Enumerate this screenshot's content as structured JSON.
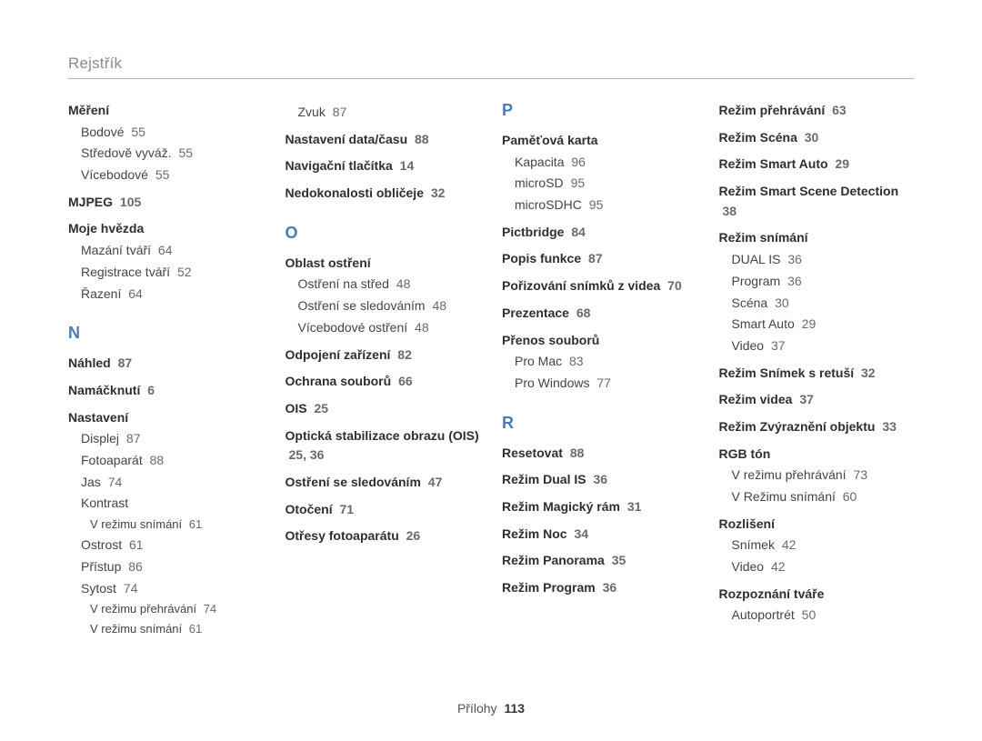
{
  "page": {
    "breadcrumb": "Rejstřík",
    "footer_label": "Přílohy",
    "footer_page": "113",
    "colors": {
      "letter": "#4a7bb5",
      "breadcrumb": "#8a8a8a",
      "text": "#3a3a3a",
      "rule": "#b8b8b8",
      "bg": "#ffffff"
    }
  },
  "columns": [
    [
      {
        "type": "bold",
        "text": "Měření",
        "first": true
      },
      {
        "type": "sub",
        "text": "Bodové",
        "page": "55"
      },
      {
        "type": "sub",
        "text": "Středově vyváž.",
        "page": "55"
      },
      {
        "type": "sub",
        "text": "Vícebodové",
        "page": "55"
      },
      {
        "type": "bold",
        "text": "MJPEG",
        "page": "105"
      },
      {
        "type": "bold",
        "text": "Moje hvězda"
      },
      {
        "type": "sub",
        "text": "Mazání tváří",
        "page": "64"
      },
      {
        "type": "sub",
        "text": "Registrace tváří",
        "page": "52"
      },
      {
        "type": "sub",
        "text": "Řazení",
        "page": "64"
      },
      {
        "type": "letter",
        "text": "N"
      },
      {
        "type": "bold",
        "text": "Náhled",
        "page": "87"
      },
      {
        "type": "bold",
        "text": "Namáčknutí",
        "page": "6"
      },
      {
        "type": "bold",
        "text": "Nastavení"
      },
      {
        "type": "sub",
        "text": "Displej",
        "page": "87"
      },
      {
        "type": "sub",
        "text": "Fotoaparát",
        "page": "88"
      },
      {
        "type": "sub",
        "text": "Jas",
        "page": "74"
      },
      {
        "type": "sub",
        "text": "Kontrast"
      },
      {
        "type": "sub2",
        "text": "V režimu snímání",
        "page": "61"
      },
      {
        "type": "sub",
        "text": "Ostrost",
        "page": "61"
      },
      {
        "type": "sub",
        "text": "Přístup",
        "page": "86"
      },
      {
        "type": "sub",
        "text": "Sytost",
        "page": "74"
      },
      {
        "type": "sub2",
        "text": "V režimu přehrávání",
        "page": "74"
      },
      {
        "type": "sub2",
        "text": "V režimu snímání",
        "page": "61"
      }
    ],
    [
      {
        "type": "sub",
        "text": "Zvuk",
        "page": "87"
      },
      {
        "type": "bold",
        "text": "Nastavení data/času",
        "page": "88"
      },
      {
        "type": "bold",
        "text": "Navigační tlačítka",
        "page": "14"
      },
      {
        "type": "bold",
        "text": "Nedokonalosti obličeje",
        "page": "32"
      },
      {
        "type": "letter",
        "text": "O"
      },
      {
        "type": "bold",
        "text": "Oblast ostření"
      },
      {
        "type": "sub",
        "text": "Ostření na střed",
        "page": "48"
      },
      {
        "type": "sub",
        "text": "Ostření se sledováním",
        "page": "48"
      },
      {
        "type": "sub",
        "text": "Vícebodové ostření",
        "page": "48"
      },
      {
        "type": "bold",
        "text": "Odpojení zařízení",
        "page": "82"
      },
      {
        "type": "bold",
        "text": "Ochrana souborů",
        "page": "66"
      },
      {
        "type": "bold",
        "text": "OIS",
        "page": "25"
      },
      {
        "type": "bold",
        "text": "Optická stabilizace obrazu (OIS)",
        "page": "25, 36"
      },
      {
        "type": "bold",
        "text": "Ostření se sledováním",
        "page": "47"
      },
      {
        "type": "bold",
        "text": "Otočení",
        "page": "71"
      },
      {
        "type": "bold",
        "text": "Otřesy fotoaparátu",
        "page": "26"
      }
    ],
    [
      {
        "type": "letter",
        "text": "P",
        "top": true
      },
      {
        "type": "bold",
        "text": "Paměťová karta"
      },
      {
        "type": "sub",
        "text": "Kapacita",
        "page": "96"
      },
      {
        "type": "sub",
        "text": "microSD",
        "page": "95"
      },
      {
        "type": "sub",
        "text": "microSDHC",
        "page": "95"
      },
      {
        "type": "bold",
        "text": "Pictbridge",
        "page": "84"
      },
      {
        "type": "bold",
        "text": "Popis funkce",
        "page": "87"
      },
      {
        "type": "bold",
        "text": "Pořizování snímků z videa",
        "page": "70"
      },
      {
        "type": "bold",
        "text": "Prezentace",
        "page": "68"
      },
      {
        "type": "bold",
        "text": "Přenos souborů"
      },
      {
        "type": "sub",
        "text": "Pro Mac",
        "page": "83"
      },
      {
        "type": "sub",
        "text": "Pro Windows",
        "page": "77"
      },
      {
        "type": "letter",
        "text": "R"
      },
      {
        "type": "bold",
        "text": "Resetovat",
        "page": "88"
      },
      {
        "type": "bold",
        "text": "Režim Dual IS",
        "page": "36"
      },
      {
        "type": "bold",
        "text": "Režim Magický rám",
        "page": "31"
      },
      {
        "type": "bold",
        "text": "Režim Noc",
        "page": "34"
      },
      {
        "type": "bold",
        "text": "Režim Panorama",
        "page": "35"
      },
      {
        "type": "bold",
        "text": "Režim Program",
        "page": "36"
      }
    ],
    [
      {
        "type": "bold",
        "text": "Režim přehrávání",
        "page": "63",
        "first": true
      },
      {
        "type": "bold",
        "text": "Režim Scéna",
        "page": "30"
      },
      {
        "type": "bold",
        "text": "Režim Smart Auto",
        "page": "29"
      },
      {
        "type": "bold",
        "text": "Režim Smart Scene Detection",
        "page": "38"
      },
      {
        "type": "bold",
        "text": "Režim snímání"
      },
      {
        "type": "sub",
        "text": "DUAL IS",
        "page": "36"
      },
      {
        "type": "sub",
        "text": "Program",
        "page": "36"
      },
      {
        "type": "sub",
        "text": "Scéna",
        "page": "30"
      },
      {
        "type": "sub",
        "text": "Smart Auto",
        "page": "29"
      },
      {
        "type": "sub",
        "text": "Video",
        "page": "37"
      },
      {
        "type": "bold",
        "text": "Režim Snímek s retuší",
        "page": "32"
      },
      {
        "type": "bold",
        "text": "Režim videa",
        "page": "37"
      },
      {
        "type": "bold",
        "text": "Režim Zvýraznění objektu",
        "page": "33"
      },
      {
        "type": "bold",
        "text": "RGB tón"
      },
      {
        "type": "sub",
        "text": "V režimu přehrávání",
        "page": "73"
      },
      {
        "type": "sub",
        "text": "V Režimu snímání",
        "page": "60"
      },
      {
        "type": "bold",
        "text": "Rozlišení"
      },
      {
        "type": "sub",
        "text": "Snímek",
        "page": "42"
      },
      {
        "type": "sub",
        "text": "Video",
        "page": "42"
      },
      {
        "type": "bold",
        "text": "Rozpoznání tváře"
      },
      {
        "type": "sub",
        "text": "Autoportrét",
        "page": "50"
      }
    ]
  ]
}
